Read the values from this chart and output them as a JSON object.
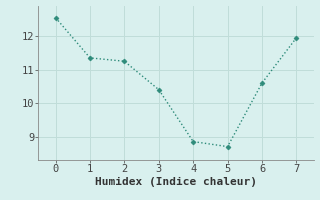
{
  "x": [
    0,
    1,
    2,
    3,
    4,
    5,
    6,
    7
  ],
  "y": [
    12.55,
    11.35,
    11.25,
    10.4,
    8.85,
    8.7,
    10.6,
    11.95
  ],
  "line_color": "#2e8b7a",
  "marker": "D",
  "marker_size": 2.5,
  "background_color": "#d9f0ee",
  "grid_color": "#c0ddd9",
  "xlabel": "Humidex (Indice chaleur)",
  "xlabel_fontsize": 8,
  "tick_fontsize": 7.5,
  "xlim": [
    -0.5,
    7.5
  ],
  "ylim": [
    8.3,
    12.9
  ],
  "yticks": [
    9,
    10,
    11,
    12
  ],
  "xticks": [
    0,
    1,
    2,
    3,
    4,
    5,
    6,
    7
  ],
  "line_width": 1.0
}
